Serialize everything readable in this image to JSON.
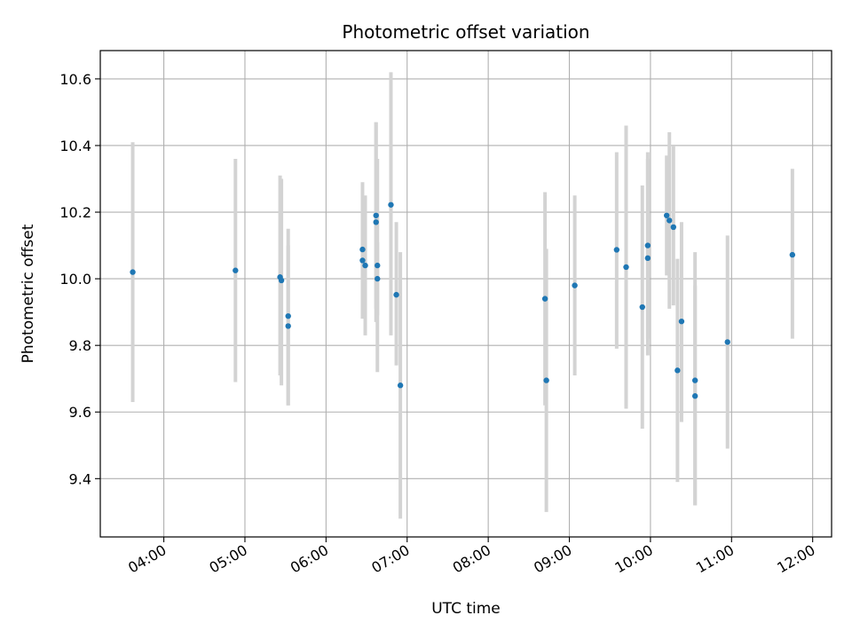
{
  "chart_data": {
    "type": "scatter",
    "title": "Photometric offset variation",
    "xlabel": "UTC time",
    "ylabel": "Photometric offset",
    "xlim": [
      "03:13",
      "12:14"
    ],
    "ylim": [
      9.225,
      10.685
    ],
    "x_ticks": [
      "04:00",
      "05:00",
      "06:00",
      "07:00",
      "08:00",
      "09:00",
      "10:00",
      "11:00",
      "12:00"
    ],
    "y_ticks": [
      9.4,
      9.6,
      9.8,
      10.0,
      10.2,
      10.4,
      10.6
    ],
    "y_tick_labels": [
      "9.4",
      "9.6",
      "9.8",
      "10.0",
      "10.2",
      "10.4",
      "10.6"
    ],
    "grid": true,
    "point_color": "#1f77b4",
    "errorbar_color": "#d3d3d3",
    "points": [
      {
        "x": "03:37",
        "y": 10.02,
        "lo": 9.63,
        "hi": 10.41
      },
      {
        "x": "04:53",
        "y": 10.025,
        "lo": 9.69,
        "hi": 10.36
      },
      {
        "x": "05:26",
        "y": 10.005,
        "lo": 9.71,
        "hi": 10.31
      },
      {
        "x": "05:27",
        "y": 9.995,
        "lo": 9.68,
        "hi": 10.3
      },
      {
        "x": "05:32",
        "y": 9.888,
        "lo": 9.62,
        "hi": 10.15
      },
      {
        "x": "05:32",
        "y": 9.858,
        "lo": 9.62,
        "hi": 10.1
      },
      {
        "x": "06:27",
        "y": 10.088,
        "lo": 9.88,
        "hi": 10.29
      },
      {
        "x": "06:27",
        "y": 10.055,
        "lo": 9.89,
        "hi": 10.19
      },
      {
        "x": "06:29",
        "y": 10.04,
        "lo": 9.83,
        "hi": 10.25
      },
      {
        "x": "06:37",
        "y": 10.19,
        "lo": 9.91,
        "hi": 10.47
      },
      {
        "x": "06:37",
        "y": 10.17,
        "lo": 9.87,
        "hi": 10.47
      },
      {
        "x": "06:38",
        "y": 10.04,
        "lo": 9.72,
        "hi": 10.36
      },
      {
        "x": "06:38",
        "y": 10.0,
        "lo": 9.89,
        "hi": 10.11
      },
      {
        "x": "06:48",
        "y": 10.222,
        "lo": 9.83,
        "hi": 10.62
      },
      {
        "x": "06:52",
        "y": 9.952,
        "lo": 9.74,
        "hi": 10.17
      },
      {
        "x": "06:55",
        "y": 9.68,
        "lo": 9.28,
        "hi": 10.08
      },
      {
        "x": "08:42",
        "y": 9.94,
        "lo": 9.62,
        "hi": 10.26
      },
      {
        "x": "08:43",
        "y": 9.695,
        "lo": 9.3,
        "hi": 10.09
      },
      {
        "x": "09:04",
        "y": 9.98,
        "lo": 9.71,
        "hi": 10.25
      },
      {
        "x": "09:35",
        "y": 10.087,
        "lo": 9.79,
        "hi": 10.38
      },
      {
        "x": "09:42",
        "y": 10.035,
        "lo": 9.61,
        "hi": 10.46
      },
      {
        "x": "09:54",
        "y": 9.915,
        "lo": 9.55,
        "hi": 10.28
      },
      {
        "x": "09:58",
        "y": 10.1,
        "lo": 9.82,
        "hi": 10.38
      },
      {
        "x": "09:58",
        "y": 10.062,
        "lo": 9.77,
        "hi": 10.36
      },
      {
        "x": "10:12",
        "y": 10.19,
        "lo": 10.01,
        "hi": 10.37
      },
      {
        "x": "10:14",
        "y": 10.175,
        "lo": 9.91,
        "hi": 10.44
      },
      {
        "x": "10:17",
        "y": 10.155,
        "lo": 9.92,
        "hi": 10.4
      },
      {
        "x": "10:20",
        "y": 9.725,
        "lo": 9.39,
        "hi": 10.06
      },
      {
        "x": "10:23",
        "y": 9.872,
        "lo": 9.57,
        "hi": 10.17
      },
      {
        "x": "10:33",
        "y": 9.695,
        "lo": 9.32,
        "hi": 10.08
      },
      {
        "x": "10:33",
        "y": 9.648,
        "lo": 9.32,
        "hi": 9.98
      },
      {
        "x": "10:57",
        "y": 9.81,
        "lo": 9.49,
        "hi": 10.13
      },
      {
        "x": "11:45",
        "y": 10.072,
        "lo": 9.82,
        "hi": 10.33
      }
    ]
  }
}
